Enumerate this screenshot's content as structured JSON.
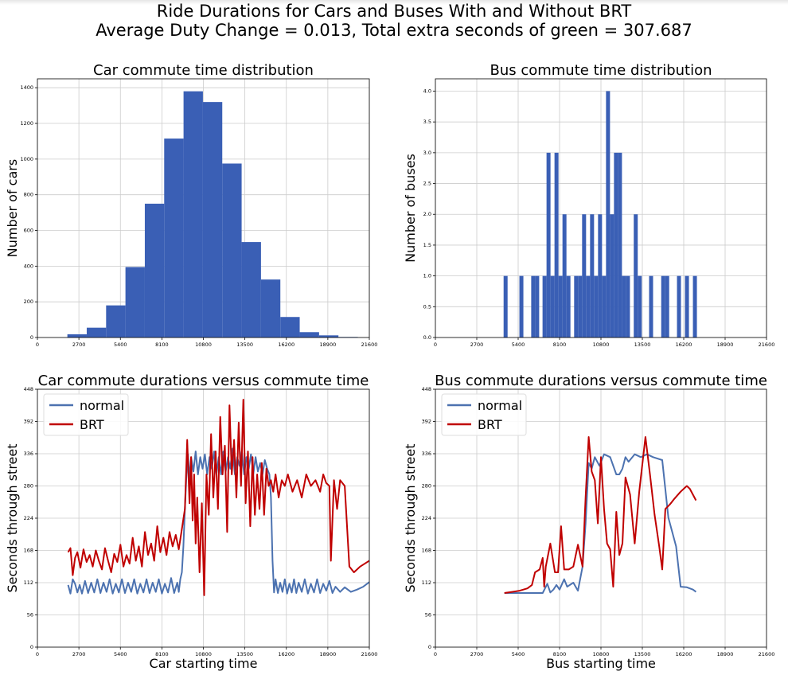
{
  "figure": {
    "suptitle_line1": "Ride Durations for Cars and Buses With and Without BRT",
    "suptitle_line2": "Average Duty Change = 0.013, Total extra seconds of green = 307.687"
  },
  "colors": {
    "normal": "#4c72b0",
    "brt": "#c00000",
    "hist": "#3a5fb5",
    "grid": "#cccccc"
  },
  "chart_data": [
    {
      "type": "bar",
      "id": "car-hist",
      "title": "Car commute time distribution",
      "xlabel": "",
      "ylabel": "Number of cars",
      "xlim": [
        0,
        21600
      ],
      "ylim": [
        0,
        1450
      ],
      "xticks": [
        0,
        2700,
        5400,
        8100,
        10800,
        13500,
        16200,
        18900,
        21600
      ],
      "yticks": [
        0,
        200,
        400,
        600,
        800,
        1000,
        1200,
        1400
      ],
      "ytick_decimals": 0,
      "grid": true,
      "bins": [
        {
          "x0": 1950,
          "x1": 3210,
          "value": 18
        },
        {
          "x0": 3210,
          "x1": 4470,
          "value": 55
        },
        {
          "x0": 4470,
          "x1": 5730,
          "value": 180
        },
        {
          "x0": 5730,
          "x1": 6990,
          "value": 395
        },
        {
          "x0": 6990,
          "x1": 8250,
          "value": 750
        },
        {
          "x0": 8250,
          "x1": 9510,
          "value": 1115
        },
        {
          "x0": 9510,
          "x1": 10770,
          "value": 1380
        },
        {
          "x0": 10770,
          "x1": 12030,
          "value": 1320
        },
        {
          "x0": 12030,
          "x1": 13290,
          "value": 975
        },
        {
          "x0": 13290,
          "x1": 14550,
          "value": 535
        },
        {
          "x0": 14550,
          "x1": 15810,
          "value": 325
        },
        {
          "x0": 15810,
          "x1": 17070,
          "value": 115
        },
        {
          "x0": 17070,
          "x1": 18330,
          "value": 30
        },
        {
          "x0": 18330,
          "x1": 19590,
          "value": 12
        },
        {
          "x0": 19590,
          "x1": 20850,
          "value": 3
        }
      ]
    },
    {
      "type": "bar",
      "id": "bus-hist",
      "title": "Bus commute time distribution",
      "xlabel": "",
      "ylabel": "Number of buses",
      "xlim": [
        0,
        21600
      ],
      "ylim": [
        0,
        4.2
      ],
      "xticks": [
        0,
        2700,
        5400,
        8100,
        10800,
        13500,
        16200,
        18900,
        21600
      ],
      "yticks": [
        0.0,
        0.5,
        1.0,
        1.5,
        2.0,
        2.5,
        3.0,
        3.5,
        4.0
      ],
      "ytick_decimals": 1,
      "grid": true,
      "bins": [
        {
          "x0": 4450,
          "x1": 4710,
          "value": 1
        },
        {
          "x0": 5480,
          "x1": 5740,
          "value": 1
        },
        {
          "x0": 6250,
          "x1": 6510,
          "value": 1
        },
        {
          "x0": 6510,
          "x1": 6770,
          "value": 1
        },
        {
          "x0": 6990,
          "x1": 7250,
          "value": 1
        },
        {
          "x0": 7250,
          "x1": 7510,
          "value": 3
        },
        {
          "x0": 7510,
          "x1": 7770,
          "value": 1
        },
        {
          "x0": 7770,
          "x1": 8030,
          "value": 3
        },
        {
          "x0": 8030,
          "x1": 8290,
          "value": 1
        },
        {
          "x0": 8290,
          "x1": 8550,
          "value": 2
        },
        {
          "x0": 8550,
          "x1": 8810,
          "value": 1
        },
        {
          "x0": 9050,
          "x1": 9310,
          "value": 1
        },
        {
          "x0": 9310,
          "x1": 9570,
          "value": 1
        },
        {
          "x0": 9570,
          "x1": 9830,
          "value": 2
        },
        {
          "x0": 9830,
          "x1": 10090,
          "value": 1
        },
        {
          "x0": 10090,
          "x1": 10350,
          "value": 2
        },
        {
          "x0": 10350,
          "x1": 10610,
          "value": 1
        },
        {
          "x0": 10610,
          "x1": 10870,
          "value": 2
        },
        {
          "x0": 10870,
          "x1": 11130,
          "value": 1
        },
        {
          "x0": 11130,
          "x1": 11390,
          "value": 4
        },
        {
          "x0": 11390,
          "x1": 11650,
          "value": 2
        },
        {
          "x0": 11650,
          "x1": 11910,
          "value": 3
        },
        {
          "x0": 11910,
          "x1": 12170,
          "value": 3
        },
        {
          "x0": 12170,
          "x1": 12430,
          "value": 1
        },
        {
          "x0": 12430,
          "x1": 12690,
          "value": 1
        },
        {
          "x0": 12940,
          "x1": 13200,
          "value": 2
        },
        {
          "x0": 13200,
          "x1": 13460,
          "value": 1
        },
        {
          "x0": 13940,
          "x1": 14200,
          "value": 1
        },
        {
          "x0": 14730,
          "x1": 14990,
          "value": 1
        },
        {
          "x0": 14990,
          "x1": 15250,
          "value": 1
        },
        {
          "x0": 15760,
          "x1": 16020,
          "value": 1
        },
        {
          "x0": 16280,
          "x1": 16540,
          "value": 1
        },
        {
          "x0": 16800,
          "x1": 17060,
          "value": 1
        }
      ]
    },
    {
      "type": "line",
      "id": "car-line",
      "title": "Car commute durations versus commute time",
      "xlabel": "Car starting time",
      "ylabel": "Seconds through street",
      "xlim": [
        0,
        21600
      ],
      "ylim": [
        0,
        448
      ],
      "xticks": [
        0,
        2700,
        5400,
        8100,
        10800,
        13500,
        16200,
        18900,
        21600
      ],
      "yticks": [
        0,
        56,
        112,
        168,
        224,
        280,
        336,
        392,
        448
      ],
      "ytick_decimals": 0,
      "grid": true,
      "legend": "top-left",
      "series": [
        {
          "name": "normal",
          "key": "normal",
          "x": [
            2000,
            2150,
            2300,
            2450,
            2600,
            2750,
            2900,
            3100,
            3300,
            3500,
            3700,
            3900,
            4100,
            4300,
            4500,
            4700,
            4900,
            5100,
            5300,
            5500,
            5700,
            5900,
            6100,
            6300,
            6500,
            6700,
            6900,
            7100,
            7300,
            7500,
            7700,
            7900,
            8100,
            8300,
            8500,
            8700,
            8900,
            9100,
            9200,
            9300,
            9400,
            9500,
            9600,
            9700,
            9800,
            9900,
            10000,
            10150,
            10300,
            10450,
            10600,
            10750,
            10900,
            11050,
            11200,
            11350,
            11500,
            11650,
            11800,
            11950,
            12100,
            12250,
            12400,
            12550,
            12700,
            12850,
            13000,
            13150,
            13300,
            13450,
            13600,
            13750,
            13900,
            14050,
            14200,
            14350,
            14500,
            14650,
            14800,
            14950,
            15100,
            15200,
            15300,
            15400,
            15500,
            15650,
            15800,
            15950,
            16100,
            16250,
            16400,
            16550,
            16700,
            16850,
            17000,
            17200,
            17400,
            17600,
            17800,
            18000,
            18200,
            18400,
            18600,
            18800,
            19000,
            19200,
            19400,
            19700,
            20000,
            20400,
            20800,
            21200,
            21600
          ],
          "y": [
            108,
            93,
            118,
            110,
            95,
            108,
            93,
            115,
            94,
            112,
            95,
            118,
            94,
            112,
            96,
            118,
            93,
            110,
            95,
            118,
            94,
            112,
            96,
            118,
            93,
            110,
            95,
            118,
            94,
            112,
            96,
            118,
            93,
            110,
            95,
            120,
            94,
            112,
            96,
            118,
            130,
            175,
            240,
            300,
            335,
            290,
            330,
            305,
            340,
            300,
            330,
            310,
            335,
            300,
            330,
            310,
            340,
            300,
            330,
            300,
            340,
            305,
            330,
            310,
            345,
            300,
            330,
            315,
            340,
            300,
            330,
            310,
            335,
            300,
            330,
            305,
            320,
            300,
            325,
            310,
            300,
            260,
            150,
            95,
            118,
            94,
            112,
            96,
            118,
            93,
            110,
            95,
            118,
            94,
            112,
            96,
            118,
            93,
            110,
            95,
            118,
            94,
            110,
            98,
            115,
            94,
            105,
            96,
            104,
            96,
            100,
            105,
            113
          ]
        },
        {
          "name": "BRT",
          "key": "brt",
          "x": [
            2000,
            2150,
            2300,
            2450,
            2600,
            2800,
            3000,
            3200,
            3400,
            3600,
            3800,
            4000,
            4200,
            4400,
            4600,
            4800,
            5000,
            5200,
            5400,
            5600,
            5800,
            6000,
            6200,
            6400,
            6600,
            6800,
            7000,
            7200,
            7400,
            7600,
            7800,
            8000,
            8200,
            8400,
            8600,
            8800,
            9000,
            9200,
            9400,
            9600,
            9750,
            9900,
            10000,
            10100,
            10200,
            10300,
            10400,
            10550,
            10700,
            10850,
            11000,
            11150,
            11300,
            11450,
            11600,
            11750,
            11900,
            12050,
            12200,
            12350,
            12500,
            12650,
            12800,
            12950,
            13100,
            13250,
            13400,
            13550,
            13700,
            13850,
            14000,
            14150,
            14300,
            14450,
            14600,
            14750,
            14900,
            15050,
            15200,
            15350,
            15500,
            15700,
            15900,
            16100,
            16300,
            16600,
            16900,
            17200,
            17500,
            17800,
            18100,
            18400,
            18600,
            18800,
            19000,
            19100,
            19300,
            19500,
            19700,
            20000,
            20300,
            20600,
            21000,
            21600
          ],
          "y": [
            165,
            172,
            125,
            155,
            165,
            138,
            170,
            148,
            160,
            140,
            168,
            150,
            135,
            172,
            150,
            130,
            162,
            148,
            178,
            140,
            160,
            145,
            190,
            150,
            175,
            140,
            200,
            160,
            180,
            150,
            210,
            165,
            190,
            160,
            200,
            175,
            195,
            170,
            205,
            240,
            360,
            250,
            330,
            220,
            300,
            180,
            260,
            130,
            250,
            90,
            300,
            230,
            370,
            260,
            340,
            240,
            400,
            300,
            350,
            200,
            420,
            300,
            360,
            260,
            390,
            280,
            430,
            250,
            340,
            210,
            330,
            230,
            300,
            240,
            320,
            230,
            310,
            280,
            290,
            270,
            300,
            260,
            290,
            280,
            300,
            270,
            290,
            260,
            300,
            280,
            290,
            270,
            300,
            285,
            280,
            150,
            290,
            240,
            290,
            280,
            140,
            130,
            140,
            150
          ]
        }
      ]
    },
    {
      "type": "line",
      "id": "bus-line",
      "title": "Bus commute durations versus commute time",
      "xlabel": "Bus starting time",
      "ylabel": "Seconds through street",
      "xlim": [
        0,
        21600
      ],
      "ylim": [
        0,
        448
      ],
      "xticks": [
        0,
        2700,
        5400,
        8100,
        10800,
        13500,
        16200,
        18900,
        21600
      ],
      "yticks": [
        0,
        56,
        112,
        168,
        224,
        280,
        336,
        392,
        448
      ],
      "ytick_decimals": 0,
      "grid": true,
      "legend": "top-left",
      "series": [
        {
          "name": "normal",
          "key": "normal",
          "x": [
            4500,
            5000,
            5500,
            6000,
            6500,
            7000,
            7300,
            7500,
            7700,
            7900,
            8100,
            8400,
            8600,
            9000,
            9300,
            9600,
            9800,
            10000,
            10200,
            10400,
            10700,
            11000,
            11400,
            11800,
            12000,
            12200,
            12400,
            12600,
            13000,
            13400,
            13800,
            14200,
            14800,
            15200,
            15700,
            16000,
            16400,
            16800,
            17000
          ],
          "y": [
            94,
            94,
            94,
            94,
            94,
            94,
            110,
            95,
            100,
            108,
            100,
            118,
            105,
            112,
            98,
            140,
            215,
            320,
            310,
            330,
            315,
            335,
            330,
            300,
            300,
            310,
            330,
            322,
            335,
            330,
            335,
            330,
            325,
            225,
            175,
            105,
            104,
            100,
            96
          ]
        },
        {
          "name": "BRT",
          "key": "brt",
          "x": [
            4500,
            5000,
            5500,
            6000,
            6300,
            6500,
            6800,
            7000,
            7100,
            7200,
            7500,
            7800,
            8000,
            8200,
            8400,
            8700,
            9000,
            9300,
            9600,
            9800,
            10000,
            10200,
            10400,
            10600,
            10800,
            11000,
            11200,
            11400,
            11600,
            11800,
            12000,
            12200,
            12400,
            12700,
            13000,
            13300,
            13700,
            14000,
            14300,
            14600,
            14800,
            15000,
            15300,
            15600,
            16000,
            16400,
            16600,
            17000
          ],
          "y": [
            94,
            96,
            98,
            102,
            108,
            130,
            135,
            155,
            105,
            140,
            180,
            130,
            130,
            210,
            135,
            135,
            140,
            178,
            140,
            260,
            365,
            305,
            290,
            215,
            330,
            240,
            180,
            170,
            105,
            235,
            160,
            180,
            295,
            265,
            180,
            270,
            365,
            300,
            230,
            175,
            135,
            240,
            248,
            258,
            270,
            280,
            275,
            255
          ]
        }
      ]
    }
  ]
}
